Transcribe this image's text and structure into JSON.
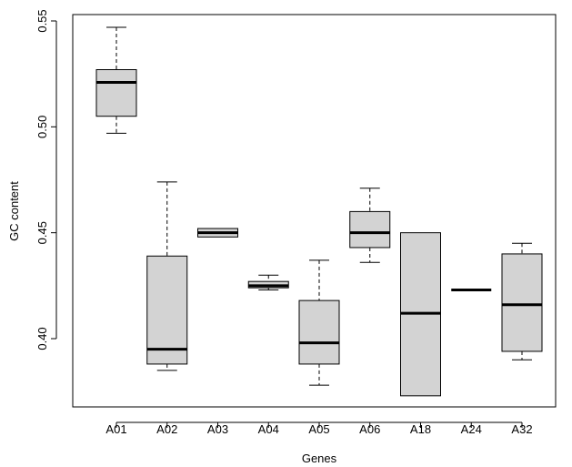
{
  "chart_data": {
    "type": "boxplot",
    "xlabel": "Genes",
    "ylabel": "GC content",
    "ylim": [
      0.367,
      0.556
    ],
    "yticks": [
      "0.40",
      "0.45",
      "0.50",
      "0.55"
    ],
    "grid": false,
    "legend": "none",
    "box_color": "#d3d3d3",
    "categories": [
      "A01",
      "A02",
      "A03",
      "A04",
      "A05",
      "A06",
      "A18",
      "A24",
      "A32"
    ],
    "boxes": [
      {
        "category": "A01",
        "whisker_low": 0.497,
        "q1": 0.505,
        "median": 0.521,
        "q3": 0.527,
        "whisker_high": 0.547
      },
      {
        "category": "A02",
        "whisker_low": 0.385,
        "q1": 0.388,
        "median": 0.395,
        "q3": 0.439,
        "whisker_high": 0.474
      },
      {
        "category": "A03",
        "whisker_low": 0.448,
        "q1": 0.448,
        "median": 0.45,
        "q3": 0.452,
        "whisker_high": 0.452
      },
      {
        "category": "A04",
        "whisker_low": 0.423,
        "q1": 0.424,
        "median": 0.425,
        "q3": 0.427,
        "whisker_high": 0.43
      },
      {
        "category": "A05",
        "whisker_low": 0.378,
        "q1": 0.388,
        "median": 0.398,
        "q3": 0.418,
        "whisker_high": 0.437
      },
      {
        "category": "A06",
        "whisker_low": 0.436,
        "q1": 0.443,
        "median": 0.45,
        "q3": 0.46,
        "whisker_high": 0.471
      },
      {
        "category": "A18",
        "whisker_low": 0.373,
        "q1": 0.373,
        "median": 0.412,
        "q3": 0.45,
        "whisker_high": 0.45
      },
      {
        "category": "A24",
        "whisker_low": 0.423,
        "q1": 0.423,
        "median": 0.423,
        "q3": 0.423,
        "whisker_high": 0.423
      },
      {
        "category": "A32",
        "whisker_low": 0.39,
        "q1": 0.394,
        "median": 0.416,
        "q3": 0.44,
        "whisker_high": 0.445
      }
    ]
  }
}
